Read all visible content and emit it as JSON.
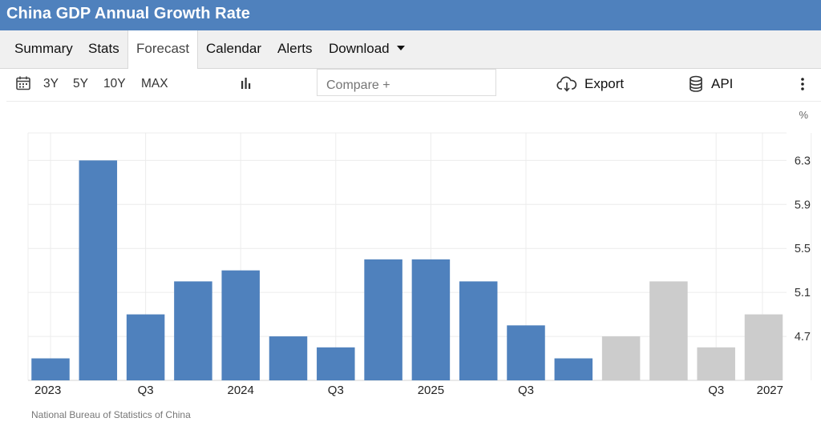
{
  "header": {
    "title": "China GDP Annual Growth Rate"
  },
  "tabs": [
    {
      "label": "Summary",
      "active": false
    },
    {
      "label": "Stats",
      "active": false
    },
    {
      "label": "Forecast",
      "active": true
    },
    {
      "label": "Calendar",
      "active": false
    },
    {
      "label": "Alerts",
      "active": false
    },
    {
      "label": "Download",
      "active": false
    }
  ],
  "toolbar": {
    "ranges": [
      "3Y",
      "5Y",
      "10Y",
      "MAX"
    ],
    "compare_placeholder": "Compare +",
    "export_label": "Export",
    "api_label": "API",
    "icons": [
      "calendar-icon",
      "bar-chart-icon",
      "cloud-download-icon",
      "database-icon",
      "more-vertical-icon"
    ]
  },
  "colors": {
    "header": "#4f81bd",
    "actual": "#4f81bd",
    "forecast": "#cccccc"
  },
  "chart_data": {
    "type": "bar",
    "unit": "%",
    "categories": [
      "2023 Q1",
      "2023 Q2",
      "2023 Q3",
      "2023 Q4",
      "2024 Q1",
      "2024 Q2",
      "2024 Q3",
      "2024 Q4",
      "2025 Q1",
      "2025 Q2",
      "2025 Q3",
      "2025 Q4",
      "2026 Q1",
      "2026 Q2",
      "2026 Q3",
      "2026 Q4"
    ],
    "x_tick_labels": [
      "2023",
      "Q3",
      "2024",
      "Q3",
      "2025",
      "Q3",
      "Q3",
      "2027"
    ],
    "x_tick_index": [
      0,
      2,
      4,
      6,
      8,
      10,
      14,
      16
    ],
    "series": [
      {
        "values": [
          4.5,
          6.3,
          4.9,
          5.2,
          5.3,
          4.7,
          4.6,
          5.4,
          5.4,
          5.2,
          4.8,
          4.5,
          null,
          null,
          null,
          null
        ]
      },
      {
        "values": [
          null,
          null,
          null,
          null,
          null,
          null,
          null,
          null,
          null,
          null,
          null,
          null,
          4.7,
          5.2,
          4.6,
          4.9
        ]
      }
    ],
    "y_ticks": [
      4.7,
      5.1,
      5.5,
      5.9,
      6.3
    ],
    "ylim": [
      4.3,
      6.55
    ],
    "grid": true,
    "axis_side": "right"
  },
  "source": "National Bureau of Statistics of China"
}
